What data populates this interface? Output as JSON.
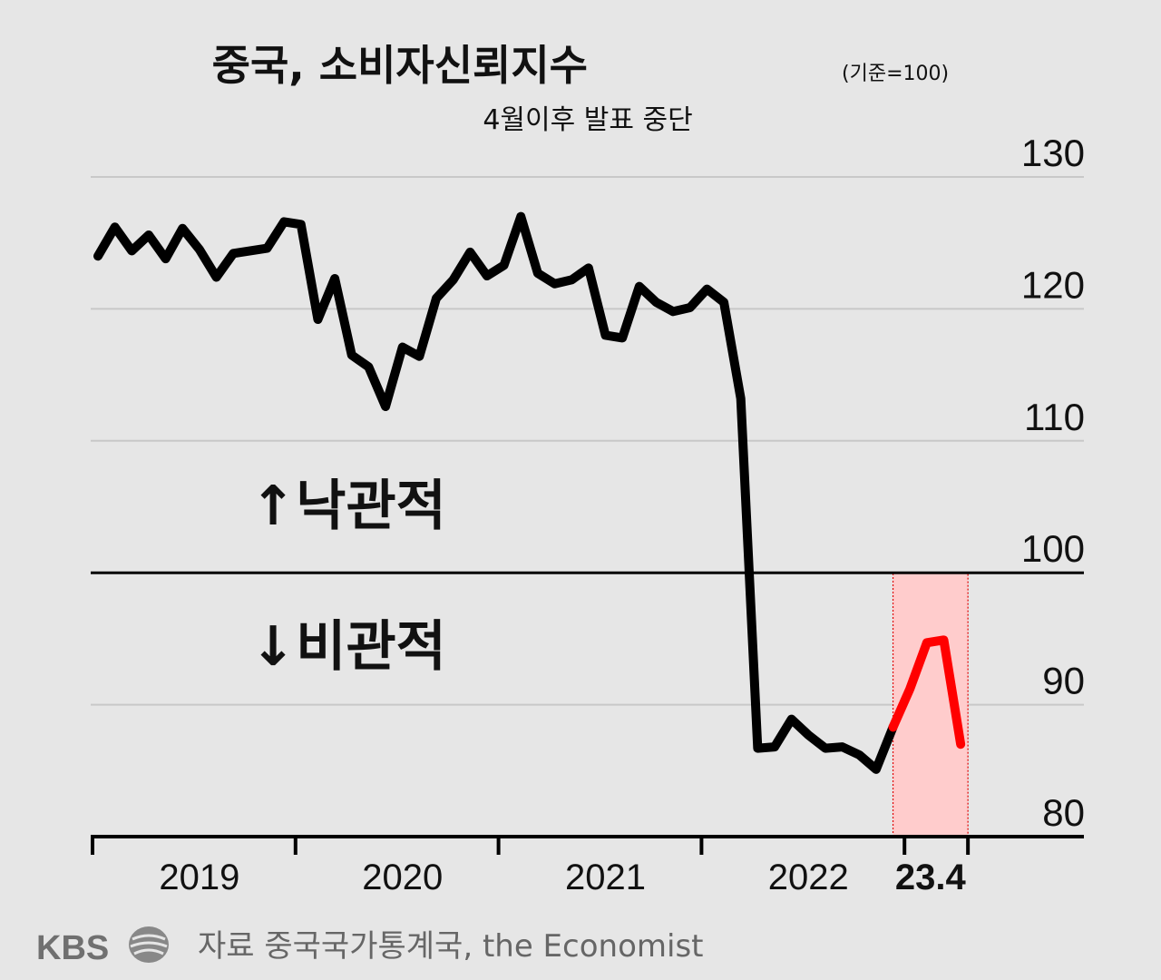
{
  "chart_data": {
    "type": "line",
    "title": "중국, 소비자신뢰지수",
    "title_note": "(기준=100)",
    "subtitle": "4월이후 발표 중단",
    "ylim": [
      80,
      130
    ],
    "y_ticks": [
      "130",
      "120",
      "110",
      "100",
      "90",
      "80"
    ],
    "x_tick_labels": [
      "2019",
      "2020",
      "2021",
      "2022"
    ],
    "x_last_label": "23.4",
    "baseline": 100,
    "annotations": {
      "above": "↑낙관적",
      "below": "↓비관적"
    },
    "highlight_label": "23.4",
    "colors": {
      "line": "#000000",
      "recent": "#ff0000",
      "highlight_fill": "#ffcccc",
      "highlight_border": "#e00000",
      "background": "#e6e6e6",
      "grid": "#c8c8c8"
    },
    "series": [
      {
        "x": [
          "2019-01",
          "2019-02",
          "2019-03",
          "2019-04",
          "2019-05",
          "2019-06",
          "2019-07",
          "2019-08",
          "2019-09",
          "2019-10",
          "2019-11",
          "2019-12",
          "2020-01",
          "2020-02",
          "2020-03",
          "2020-04",
          "2020-05",
          "2020-06",
          "2020-07",
          "2020-08",
          "2020-09",
          "2020-10",
          "2020-11",
          "2020-12",
          "2021-01",
          "2021-02",
          "2021-03",
          "2021-04",
          "2021-05",
          "2021-06",
          "2021-07",
          "2021-08",
          "2021-09",
          "2021-10",
          "2021-11",
          "2021-12",
          "2022-01",
          "2022-02",
          "2022-03",
          "2022-04",
          "2022-05",
          "2022-06",
          "2022-07",
          "2022-08",
          "2022-09",
          "2022-10",
          "2022-11",
          "2022-12"
        ],
        "values": [
          124,
          126.2,
          124.4,
          125.6,
          123.8,
          126.1,
          124.5,
          122.4,
          124.2,
          124.4,
          124.6,
          126.6,
          126.4,
          119.2,
          122.3,
          116.5,
          115.6,
          112.6,
          117.1,
          116.4,
          120.8,
          122.2,
          124.3,
          122.5,
          123.3,
          127.0,
          122.7,
          121.9,
          122.2,
          123.1,
          118.0,
          117.8,
          121.7,
          120.5,
          119.8,
          120.1,
          121.5,
          120.5,
          113.2,
          86.7,
          86.8,
          88.9,
          87.7,
          86.7,
          86.8,
          86.2,
          85.1,
          88.3
        ]
      },
      {
        "x": [
          "2022-12",
          "2023-01",
          "2023-02",
          "2023-03",
          "2023-04"
        ],
        "values": [
          88.3,
          91.2,
          94.7,
          94.9,
          87.0
        ]
      }
    ],
    "source": "자료 중국국가통계국, the Economist",
    "logo": "KBS"
  }
}
